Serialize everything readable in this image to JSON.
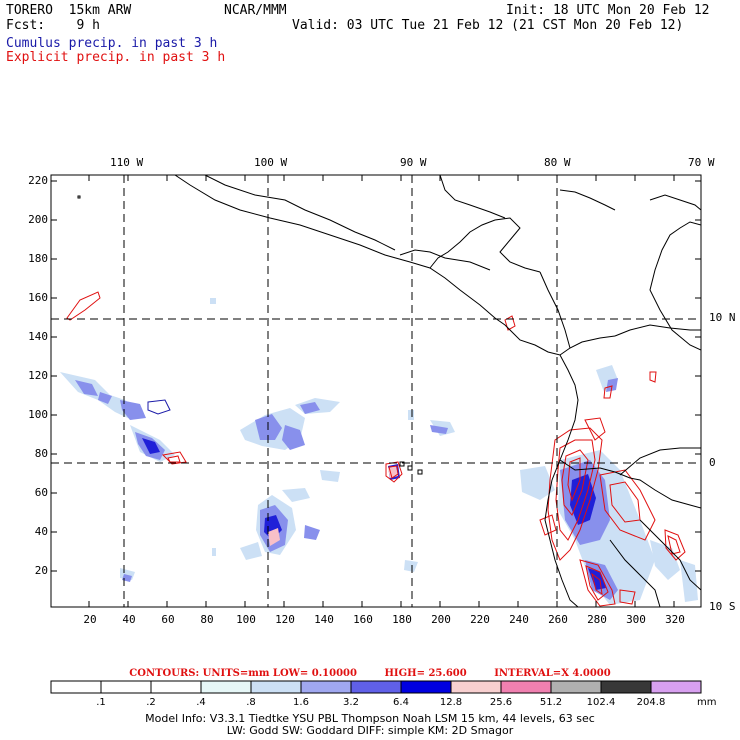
{
  "header": {
    "model": "TORERO  15km ARW",
    "org": "NCAR/MMM",
    "init": "Init: 18 UTC Mon 20 Feb 12",
    "fcst": "Fcst:    9 h",
    "valid": "Valid: 03 UTC Tue 21 Feb 12 (21 CST Mon 20 Feb 12)",
    "field1": "Cumulus precip. in past 3 h",
    "field2": "Explicit precip. in past 3 h"
  },
  "colors": {
    "field1": "#1a1aa8",
    "field2": "#e01010"
  },
  "map": {
    "top_lon_labels": [
      "110 W",
      "100 W",
      "90 W",
      "80 W",
      "70 W"
    ],
    "right_lat_labels": [
      "10 N",
      "0",
      "10 S"
    ],
    "left_y_ticks": [
      "220",
      "200",
      "180",
      "160",
      "140",
      "120",
      "100",
      "80",
      "60",
      "40",
      "20"
    ],
    "bottom_x_ticks": [
      "20",
      "40",
      "60",
      "80",
      "100",
      "120",
      "140",
      "160",
      "180",
      "200",
      "220",
      "240",
      "260",
      "280",
      "300",
      "320"
    ]
  },
  "contours": {
    "units": "CONTOURS:  UNITS=mm  LOW= 0.10000",
    "high": "HIGH=  25.600",
    "interval": "INTERVAL=X  4.0000"
  },
  "colorbar": {
    "labels": [
      ".1",
      ".2",
      ".4",
      ".8",
      "1.6",
      "3.2",
      "6.4",
      "12.8",
      "25.6",
      "51.2",
      "102.4",
      "204.8"
    ],
    "unit": "mm",
    "colors": [
      "#ffffff",
      "#ffffff",
      "#ffffff",
      "#e6f7f7",
      "#cce0f5",
      "#a0a8f0",
      "#6060e8",
      "#0000e0",
      "#f8d0d0",
      "#f080b0",
      "#b0b0b0",
      "#383838",
      "#d8a0f0"
    ]
  },
  "model_info": {
    "line1": "Model Info: V3.3.1     Tiedtke YSU PBL  Thompson     Noah LSM  15 km,    44 levels,    63 sec",
    "line2": "LW: Godd SW: Goddard DIFF: simple KM: 2D Smagor"
  }
}
